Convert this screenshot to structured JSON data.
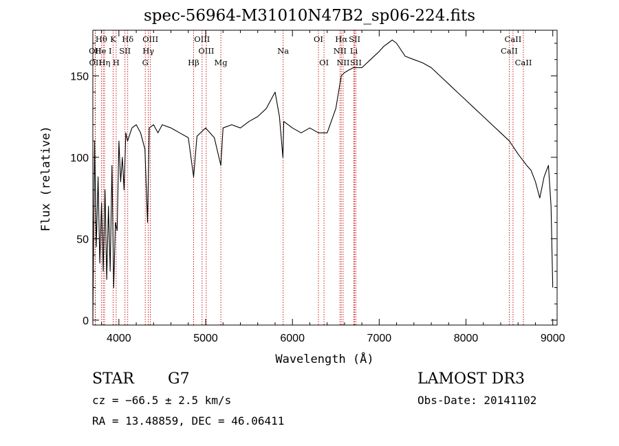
{
  "title": "spec-56964-M31010N47B2_sp06-224.fits",
  "info": {
    "object_class": "STAR",
    "subclass": "G7",
    "survey": "LAMOST DR3",
    "cz": "cz = −66.5 ± 2.5 km/s",
    "obs_date": "Obs-Date: 20141102",
    "radec": "RA =  13.48859, DEC =  46.06411"
  },
  "chart_data": {
    "type": "line",
    "title": "spec-56964-M31010N47B2_sp06-224.fits",
    "xlabel": "Wavelength (Å)",
    "ylabel": "Flux (relative)",
    "xlim": [
      3700,
      9050
    ],
    "ylim": [
      -3,
      178
    ],
    "xticks": [
      4000,
      5000,
      6000,
      7000,
      8000,
      9000
    ],
    "xtick_labels": [
      "4000",
      "5000",
      "6000",
      "7000",
      "8000",
      "9000"
    ],
    "yticks": [
      0,
      50,
      100,
      150
    ],
    "ytick_labels": [
      "0",
      "50",
      "100",
      "150"
    ],
    "line_color": "#000000",
    "marker_color": "#c00000",
    "spectrum": {
      "x": [
        3700,
        3720,
        3740,
        3760,
        3780,
        3800,
        3820,
        3840,
        3860,
        3880,
        3900,
        3920,
        3940,
        3960,
        3980,
        4000,
        4020,
        4040,
        4060,
        4080,
        4100,
        4150,
        4200,
        4250,
        4300,
        4330,
        4350,
        4400,
        4450,
        4500,
        4600,
        4700,
        4800,
        4861,
        4900,
        5000,
        5100,
        5175,
        5200,
        5300,
        5400,
        5500,
        5600,
        5700,
        5780,
        5800,
        5850,
        5890,
        5900,
        6000,
        6100,
        6200,
        6300,
        6400,
        6500,
        6563,
        6600,
        6700,
        6800,
        6900,
        7000,
        7050,
        7100,
        7150,
        7200,
        7300,
        7400,
        7500,
        7600,
        7700,
        7800,
        7900,
        8000,
        8100,
        8200,
        8300,
        8400,
        8500,
        8600,
        8700,
        8750,
        8800,
        8850,
        8900,
        8950,
        8980,
        9000
      ],
      "y": [
        0,
        110,
        45,
        88,
        35,
        72,
        30,
        80,
        25,
        70,
        30,
        95,
        20,
        60,
        55,
        110,
        85,
        100,
        80,
        115,
        110,
        118,
        120,
        115,
        105,
        60,
        118,
        120,
        115,
        120,
        118,
        115,
        112,
        88,
        113,
        118,
        112,
        95,
        118,
        120,
        118,
        122,
        125,
        130,
        138,
        140,
        125,
        100,
        122,
        118,
        115,
        118,
        115,
        115,
        130,
        150,
        152,
        155,
        155,
        160,
        165,
        168,
        170,
        172,
        170,
        162,
        160,
        158,
        155,
        150,
        145,
        140,
        135,
        130,
        125,
        120,
        115,
        110,
        102,
        95,
        92,
        85,
        75,
        88,
        95,
        70,
        20
      ]
    },
    "lines": [
      {
        "label": "Hθ",
        "wavelength": 3798,
        "row": 1
      },
      {
        "label": "OII",
        "wavelength": 3727,
        "row": 2
      },
      {
        "label": "OII",
        "wavelength": 3729,
        "row": 3
      },
      {
        "label": "He I",
        "wavelength": 3820,
        "row": 2
      },
      {
        "label": "Hη",
        "wavelength": 3835,
        "row": 3
      },
      {
        "label": "K",
        "wavelength": 3934,
        "row": 1
      },
      {
        "label": "SII",
        "wavelength": 4070,
        "row": 2
      },
      {
        "label": "H",
        "wavelength": 3969,
        "row": 3
      },
      {
        "label": "Hδ",
        "wavelength": 4102,
        "row": 1
      },
      {
        "label": "OIII",
        "wavelength": 4363,
        "row": 1
      },
      {
        "label": "Hγ",
        "wavelength": 4340,
        "row": 2
      },
      {
        "label": "G",
        "wavelength": 4304,
        "row": 3
      },
      {
        "label": "Hβ",
        "wavelength": 4861,
        "row": 3
      },
      {
        "label": "OIII",
        "wavelength": 4959,
        "row": 1
      },
      {
        "label": "OIII",
        "wavelength": 5007,
        "row": 2
      },
      {
        "label": "Mg",
        "wavelength": 5175,
        "row": 3
      },
      {
        "label": "Na",
        "wavelength": 5893,
        "row": 2
      },
      {
        "label": "OI",
        "wavelength": 6300,
        "row": 1
      },
      {
        "label": "OI",
        "wavelength": 6364,
        "row": 3
      },
      {
        "label": "Hα",
        "wavelength": 6563,
        "row": 1
      },
      {
        "label": "NII",
        "wavelength": 6548,
        "row": 2
      },
      {
        "label": "NII",
        "wavelength": 6584,
        "row": 3
      },
      {
        "label": "SII",
        "wavelength": 6717,
        "row": 1
      },
      {
        "label": "Li",
        "wavelength": 6708,
        "row": 2
      },
      {
        "label": "SII",
        "wavelength": 6731,
        "row": 3
      },
      {
        "label": "CaII",
        "wavelength": 8542,
        "row": 1
      },
      {
        "label": "CaII",
        "wavelength": 8498,
        "row": 2
      },
      {
        "label": "CaII",
        "wavelength": 8662,
        "row": 3
      }
    ]
  }
}
